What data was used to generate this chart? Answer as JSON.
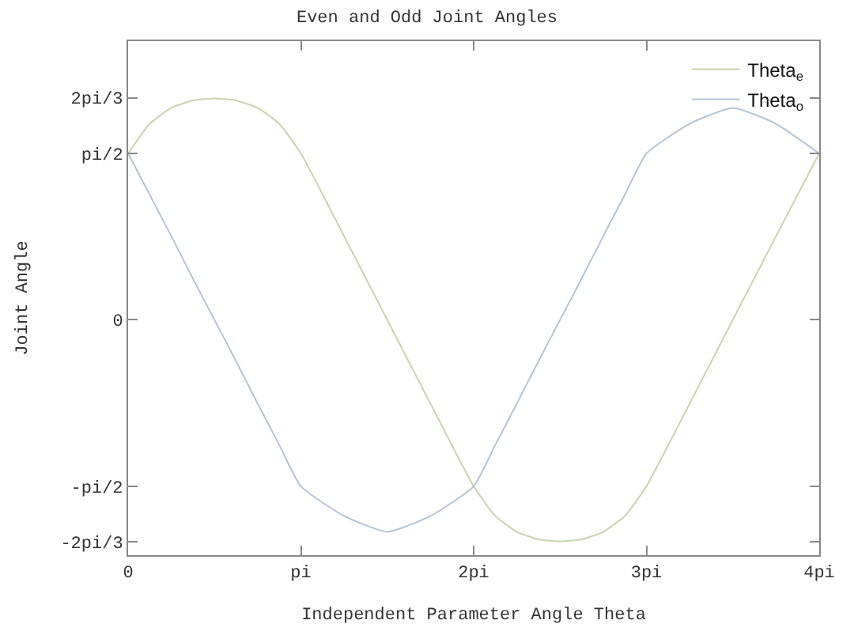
{
  "chart_data": {
    "type": "line",
    "title": "Even and Odd Joint Angles",
    "xlabel": "Independent Parameter Angle Theta",
    "ylabel": "Joint Angle",
    "x": [
      0,
      0.125,
      0.25,
      0.375,
      0.5,
      0.625,
      0.75,
      0.875,
      1,
      1.25,
      1.5,
      1.75,
      2,
      2.125,
      2.25,
      2.375,
      2.5,
      2.625,
      2.75,
      2.875,
      3,
      3.25,
      3.5,
      3.75,
      4
    ],
    "series": [
      {
        "name": "Theta$_{e}$",
        "color": "#c9d4b0",
        "values": [
          1.57,
          1.85,
          2.0,
          2.07,
          2.09,
          2.07,
          2.0,
          1.85,
          1.57,
          0.79,
          0,
          -0.79,
          -1.57,
          -1.85,
          -2.0,
          -2.07,
          -2.09,
          -2.07,
          -2.0,
          -1.85,
          -1.57,
          -0.79,
          0,
          0.79,
          1.57
        ]
      },
      {
        "name": "Theta$_{o}$",
        "color": "#b4c4d4",
        "values": [
          1.57,
          1.18,
          0.79,
          0.39,
          0,
          -0.39,
          -0.79,
          -1.18,
          -1.57,
          -1.85,
          -2.0,
          -1.85,
          -1.57,
          -1.18,
          -0.79,
          -0.39,
          0,
          0.39,
          0.79,
          1.18,
          1.57,
          1.85,
          2.0,
          1.85,
          1.57
        ]
      }
    ],
    "xlim": [
      0,
      4
    ],
    "ylim": [
      -2.22,
      2.63
    ],
    "xticks": [
      0,
      {
        "value": 1,
        "label": "pi"
      },
      {
        "value": 2,
        "label": "2pi"
      },
      {
        "value": 3,
        "label": "3pi"
      },
      {
        "value": 4,
        "label": "4pi"
      }
    ],
    "yticks": [
      {
        "value": -2.0944,
        "label": "-2pi/3"
      },
      {
        "value": -1.5708,
        "label": "-pi/2"
      },
      0,
      {
        "value": 1.5708,
        "label": "pi/2"
      },
      {
        "value": 2.0944,
        "label": "2pi/3"
      }
    ],
    "legend": "top right",
    "marker": "none",
    "line_style": "solid"
  }
}
